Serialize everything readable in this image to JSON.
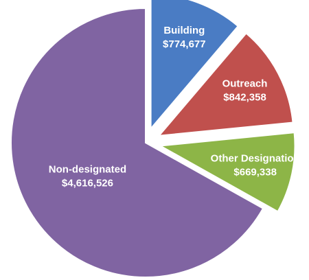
{
  "chart_data": {
    "type": "pie",
    "categories": [
      "Building",
      "Outreach",
      "Other Designation",
      "Non-designated"
    ],
    "values": [
      774677,
      842358,
      669338,
      4616526
    ],
    "value_labels": [
      "$774,677",
      "$842,358",
      "$669,338",
      "$4,616,526"
    ],
    "colors": [
      "#4a7cc4",
      "#c0504d",
      "#8db547",
      "#8064a2"
    ],
    "exploded": [
      true,
      true,
      true,
      false
    ]
  }
}
